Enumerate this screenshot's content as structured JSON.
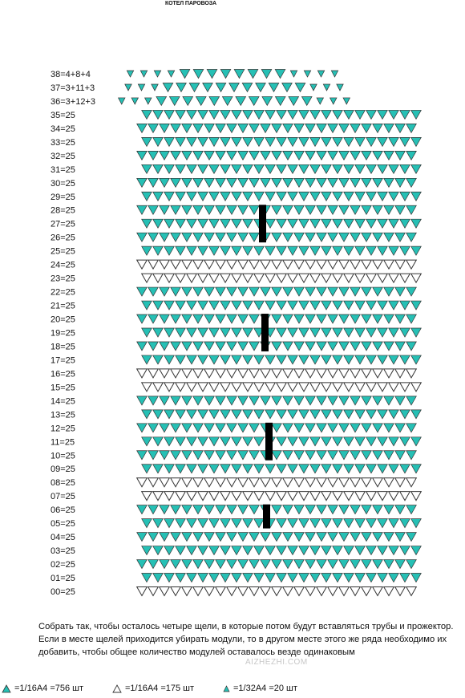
{
  "title": "КОТЕЛ ПАРОВОЗА",
  "rows": [
    {
      "label": "38=4+8+4",
      "counts": "4+8+4"
    },
    {
      "label": "37=3+11+3",
      "counts": "3+11+3"
    },
    {
      "label": "36=3+12+3",
      "counts": "3+12+3"
    },
    {
      "label": "35=25",
      "count": 25,
      "color": "teal"
    },
    {
      "label": "34=25",
      "count": 25,
      "color": "teal"
    },
    {
      "label": "33=25",
      "count": 25,
      "color": "teal"
    },
    {
      "label": "32=25",
      "count": 25,
      "color": "teal"
    },
    {
      "label": "31=25",
      "count": 25,
      "color": "teal"
    },
    {
      "label": "30=25",
      "count": 25,
      "color": "teal"
    },
    {
      "label": "29=25",
      "count": 25,
      "color": "teal"
    },
    {
      "label": "28=25",
      "count": 25,
      "color": "teal",
      "slot": true
    },
    {
      "label": "27=25",
      "count": 25,
      "color": "teal",
      "slot": true
    },
    {
      "label": "26=25",
      "count": 25,
      "color": "teal",
      "slot": true
    },
    {
      "label": "25=25",
      "count": 25,
      "color": "teal"
    },
    {
      "label": "24=25",
      "count": 25,
      "color": "white"
    },
    {
      "label": "23=25",
      "count": 25,
      "color": "white"
    },
    {
      "label": "22=25",
      "count": 25,
      "color": "teal"
    },
    {
      "label": "21=25",
      "count": 25,
      "color": "teal"
    },
    {
      "label": "20=25",
      "count": 25,
      "color": "teal",
      "slot": true
    },
    {
      "label": "19=25",
      "count": 25,
      "color": "teal",
      "slot": true
    },
    {
      "label": "18=25",
      "count": 25,
      "color": "teal",
      "slot": true
    },
    {
      "label": "17=25",
      "count": 25,
      "color": "teal"
    },
    {
      "label": "16=25",
      "count": 25,
      "color": "white"
    },
    {
      "label": "15=25",
      "count": 25,
      "color": "white"
    },
    {
      "label": "14=25",
      "count": 25,
      "color": "teal"
    },
    {
      "label": "13=25",
      "count": 25,
      "color": "teal"
    },
    {
      "label": "12=25",
      "count": 25,
      "color": "teal",
      "slot": true
    },
    {
      "label": "11=25",
      "count": 25,
      "color": "teal",
      "slot": true
    },
    {
      "label": "10=25",
      "count": 25,
      "color": "teal",
      "slot": true
    },
    {
      "label": "09=25",
      "count": 25,
      "color": "teal"
    },
    {
      "label": "08=25",
      "count": 25,
      "color": "white"
    },
    {
      "label": "07=25",
      "count": 25,
      "color": "white"
    },
    {
      "label": "06=25",
      "count": 25,
      "color": "teal",
      "slot": true
    },
    {
      "label": "05=25",
      "count": 25,
      "color": "teal",
      "slot": true
    },
    {
      "label": "04=25",
      "count": 25,
      "color": "teal"
    },
    {
      "label": "03=25",
      "count": 25,
      "color": "teal"
    },
    {
      "label": "02=25",
      "count": 25,
      "color": "teal"
    },
    {
      "label": "01=25",
      "count": 25,
      "color": "teal"
    },
    {
      "label": "00=25",
      "count": 25,
      "color": "white"
    }
  ],
  "instructions": "Собрать так, чтобы осталось четыре щели, в которые потом будут вставляться трубы и прожектор. Если в месте щелей приходится убирать модули, то в другом месте этого же ряда необходимо их добавить, чтобы общее количество модулей оставалось везде одинаковым",
  "watermark": "AIZHEZHI.COM",
  "legend": [
    {
      "icon": "teal-triangle-icon",
      "text": "=1/16А4 =756 шт"
    },
    {
      "icon": "white-triangle-icon",
      "text": "=1/16А4 =175 шт"
    },
    {
      "icon": "small-teal-triangle-icon",
      "text": "=1/32А4 =20 шт"
    }
  ],
  "colors": {
    "teal": "#26c0b5",
    "outline": "#333333",
    "slot": "#000000"
  }
}
